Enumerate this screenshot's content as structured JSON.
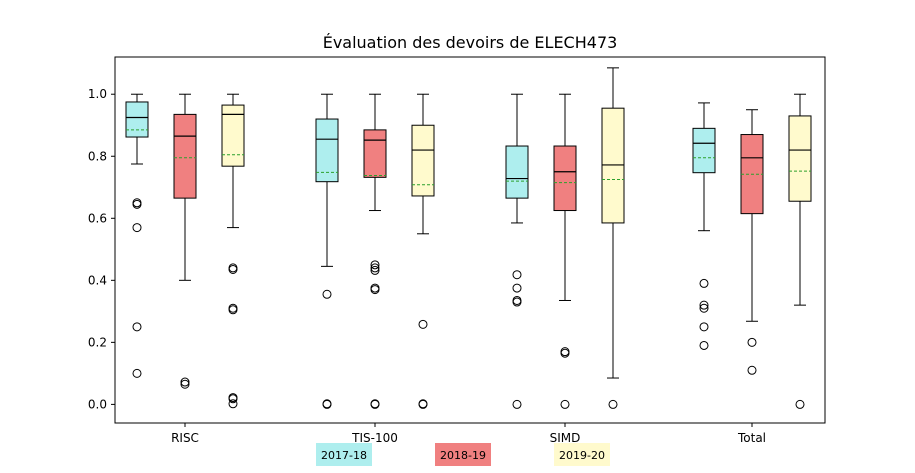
{
  "chart_data": {
    "type": "boxplot",
    "title": "Évaluation des devoirs de ELECH473",
    "xlabel": "",
    "ylabel": "",
    "ylim": [
      -0.06,
      1.12
    ],
    "yticks": [
      "0.0",
      "0.2",
      "0.4",
      "0.6",
      "0.8",
      "1.0"
    ],
    "categories": [
      "RISC",
      "TIS-100",
      "SIMD",
      "Total"
    ],
    "grid": false,
    "legend_placement": "bottom",
    "series": [
      {
        "name": "2017-18",
        "color": "#aeeeee",
        "boxes": [
          {
            "whislo": 0.775,
            "q1": 0.862,
            "med": 0.925,
            "q3": 0.975,
            "whishi": 1.0,
            "mean": 0.885,
            "fliers": [
              0.65,
              0.645,
              0.57,
              0.25,
              0.1
            ]
          },
          {
            "whislo": 0.445,
            "q1": 0.718,
            "med": 0.855,
            "q3": 0.92,
            "whishi": 1.0,
            "mean": 0.748,
            "fliers": [
              0.355,
              0.002,
              0.0
            ]
          },
          {
            "whislo": 0.585,
            "q1": 0.665,
            "med": 0.728,
            "q3": 0.833,
            "whishi": 1.0,
            "mean": 0.72,
            "fliers": [
              0.418,
              0.375,
              0.335,
              0.33,
              0.0
            ]
          },
          {
            "whislo": 0.56,
            "q1": 0.747,
            "med": 0.842,
            "q3": 0.89,
            "whishi": 0.972,
            "mean": 0.795,
            "fliers": [
              0.39,
              0.32,
              0.31,
              0.25,
              0.19
            ]
          }
        ]
      },
      {
        "name": "2018-19",
        "color": "#f08080",
        "boxes": [
          {
            "whislo": 0.4,
            "q1": 0.665,
            "med": 0.865,
            "q3": 0.935,
            "whishi": 1.0,
            "mean": 0.795,
            "fliers": [
              0.072,
              0.065
            ]
          },
          {
            "whislo": 0.625,
            "q1": 0.732,
            "med": 0.852,
            "q3": 0.885,
            "whishi": 1.0,
            "mean": 0.738,
            "fliers": [
              0.45,
              0.44,
              0.432,
              0.375,
              0.37,
              0.002,
              0.0
            ]
          },
          {
            "whislo": 0.335,
            "q1": 0.625,
            "med": 0.75,
            "q3": 0.833,
            "whishi": 1.0,
            "mean": 0.715,
            "fliers": [
              0.17,
              0.165,
              0.0
            ]
          },
          {
            "whislo": 0.268,
            "q1": 0.615,
            "med": 0.795,
            "q3": 0.87,
            "whishi": 0.95,
            "mean": 0.742,
            "fliers": [
              0.2,
              0.11
            ]
          }
        ]
      },
      {
        "name": "2019-20",
        "color": "#fffacd",
        "boxes": [
          {
            "whislo": 0.57,
            "q1": 0.768,
            "med": 0.935,
            "q3": 0.965,
            "whishi": 1.0,
            "mean": 0.805,
            "fliers": [
              0.44,
              0.435,
              0.31,
              0.305,
              0.022,
              0.018,
              0.002
            ]
          },
          {
            "whislo": 0.55,
            "q1": 0.672,
            "med": 0.82,
            "q3": 0.9,
            "whishi": 1.0,
            "mean": 0.708,
            "fliers": [
              0.258,
              0.002,
              0.0
            ]
          },
          {
            "whislo": 0.085,
            "q1": 0.585,
            "med": 0.772,
            "q3": 0.955,
            "whishi": 1.085,
            "mean": 0.725,
            "fliers": [
              0.0
            ]
          },
          {
            "whislo": 0.32,
            "q1": 0.655,
            "med": 0.82,
            "q3": 0.93,
            "whishi": 1.0,
            "mean": 0.752,
            "fliers": [
              0.0
            ]
          }
        ]
      }
    ],
    "legend": [
      "2017-18",
      "2018-19",
      "2019-20"
    ],
    "median_color": "#000000",
    "mean_color": "#2ca02c"
  }
}
